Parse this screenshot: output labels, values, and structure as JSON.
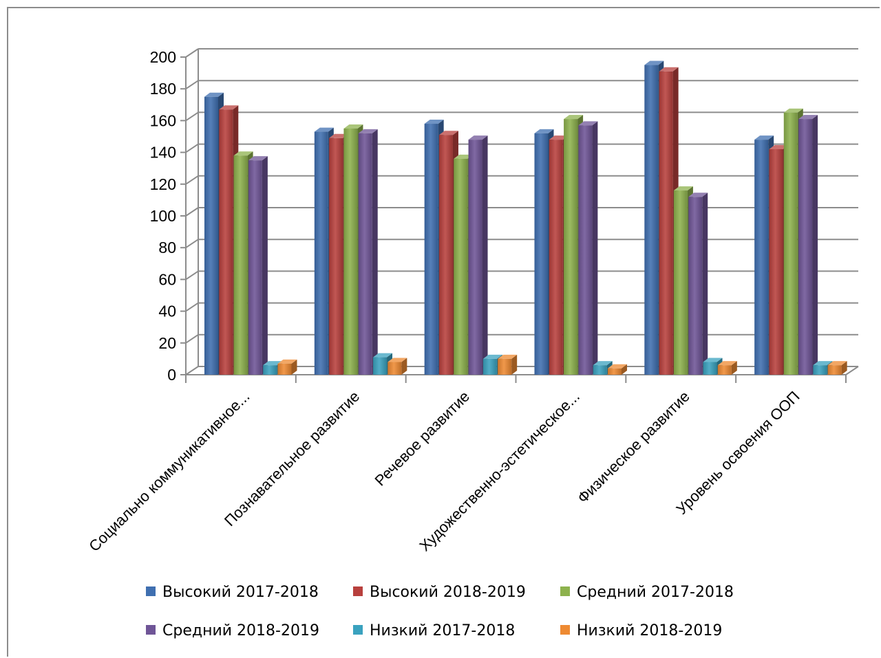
{
  "chart_data": {
    "type": "bar",
    "categories": [
      "Социально коммуникативное...",
      "Познавательное развитие",
      "Речевое развитие",
      "Художественно-эстетическое...",
      "Физическое развитие",
      "Уровень освоения ООП"
    ],
    "series": [
      {
        "name": "Высокий 2017-2018",
        "color": "#3f6fb0",
        "values": [
          175,
          153,
          158,
          152,
          195,
          148
        ]
      },
      {
        "name": "Высокий 2018-2019",
        "color": "#b8403d",
        "values": [
          167,
          149,
          151,
          148,
          191,
          142
        ]
      },
      {
        "name": "Средний 2017-2018",
        "color": "#8db24d",
        "values": [
          138,
          155,
          136,
          161,
          116,
          165
        ]
      },
      {
        "name": "Средний 2018-2019",
        "color": "#6f5597",
        "values": [
          135,
          152,
          148,
          157,
          112,
          161
        ]
      },
      {
        "name": "Низкий 2017-2018",
        "color": "#3aa2bf",
        "values": [
          6,
          11,
          10,
          6,
          8,
          6
        ]
      },
      {
        "name": "Низкий 2018-2019",
        "color": "#ee8a32",
        "values": [
          7,
          8,
          10,
          4,
          6,
          6
        ]
      }
    ],
    "ylim": [
      0,
      200
    ],
    "yticks": [
      "0",
      "20",
      "40",
      "60",
      "80",
      "100",
      "120",
      "140",
      "160",
      "180",
      "200"
    ],
    "grid": true,
    "legend_position": "bottom",
    "xlabel": "",
    "ylabel": "",
    "title": ""
  }
}
